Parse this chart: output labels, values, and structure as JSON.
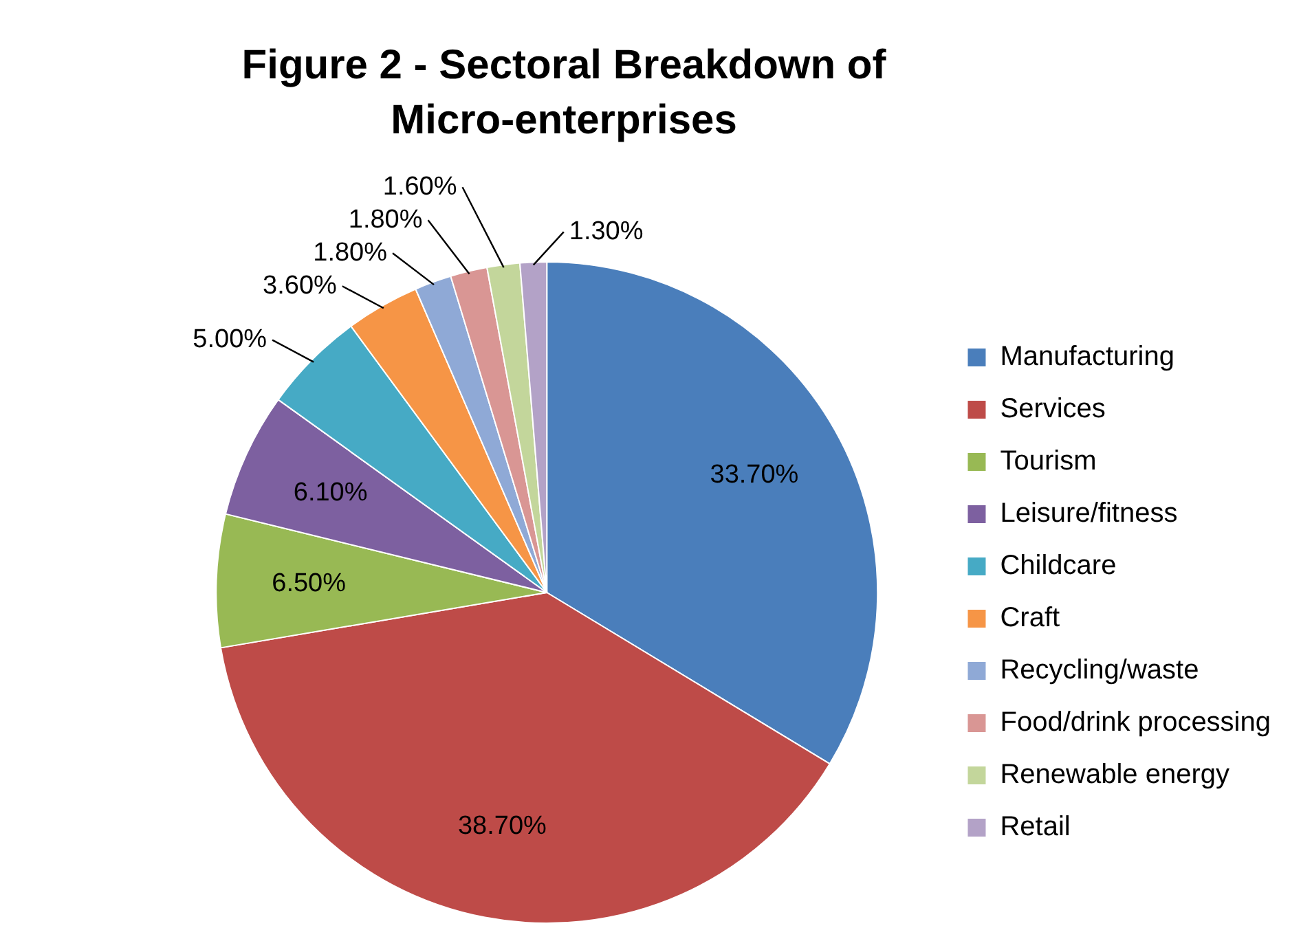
{
  "chart_data": {
    "type": "pie",
    "title": "Figure 2 - Sectoral Breakdown of Micro-enterprises",
    "categories": [
      "Manufacturing",
      "Services",
      "Tourism",
      "Leisure/fitness",
      "Childcare",
      "Craft",
      "Recycling/waste",
      "Food/drink processing",
      "Renewable energy",
      "Retail"
    ],
    "values": [
      33.7,
      38.7,
      6.5,
      6.1,
      5.0,
      3.6,
      1.8,
      1.8,
      1.6,
      1.3
    ],
    "value_labels": [
      "33.70%",
      "38.70%",
      "6.50%",
      "6.10%",
      "5.00%",
      "3.60%",
      "1.80%",
      "1.80%",
      "1.60%",
      "1.30%"
    ],
    "colors": [
      "#4a7ebb",
      "#be4b48",
      "#98b954",
      "#7d60a0",
      "#46aac5",
      "#f69546",
      "#8fa9d6",
      "#d99694",
      "#c3d69b",
      "#b3a2c7"
    ],
    "legend": "right"
  }
}
